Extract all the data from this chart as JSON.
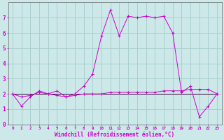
{
  "xlabel": "Windchill (Refroidissement éolien,°C)",
  "background_color": "#cce8e8",
  "grid_color": "#aacfcf",
  "line_color": "#cc00cc",
  "flat_line_color": "#330033",
  "x_values": [
    0,
    1,
    2,
    3,
    4,
    5,
    6,
    7,
    8,
    9,
    10,
    11,
    12,
    13,
    14,
    15,
    16,
    17,
    18,
    19,
    20,
    21,
    22,
    23
  ],
  "line_main": [
    2.0,
    1.2,
    1.8,
    2.2,
    2.0,
    2.2,
    1.8,
    2.0,
    2.5,
    3.3,
    5.8,
    7.5,
    5.8,
    7.1,
    7.0,
    7.1,
    7.0,
    7.1,
    6.0,
    2.1,
    2.5,
    0.5,
    1.2,
    2.0
  ],
  "line_flat1": [
    2.0,
    2.0,
    2.0,
    2.0,
    2.0,
    2.0,
    2.0,
    2.0,
    2.0,
    2.0,
    2.0,
    2.0,
    2.0,
    2.0,
    2.0,
    2.0,
    2.0,
    2.0,
    2.0,
    2.0,
    2.0,
    2.0,
    2.0,
    2.0
  ],
  "line_flat2": [
    2.0,
    1.8,
    1.9,
    2.1,
    2.0,
    1.9,
    1.8,
    1.9,
    2.0,
    2.0,
    2.0,
    2.1,
    2.1,
    2.1,
    2.1,
    2.1,
    2.1,
    2.2,
    2.2,
    2.2,
    2.3,
    2.3,
    2.3,
    2.0
  ],
  "ylim": [
    0,
    8
  ],
  "xlim": [
    -0.5,
    23.5
  ],
  "yticks": [
    0,
    1,
    2,
    3,
    4,
    5,
    6,
    7
  ],
  "xticks": [
    0,
    1,
    2,
    3,
    4,
    5,
    6,
    7,
    8,
    9,
    10,
    11,
    12,
    13,
    14,
    15,
    16,
    17,
    18,
    19,
    20,
    21,
    22,
    23
  ]
}
